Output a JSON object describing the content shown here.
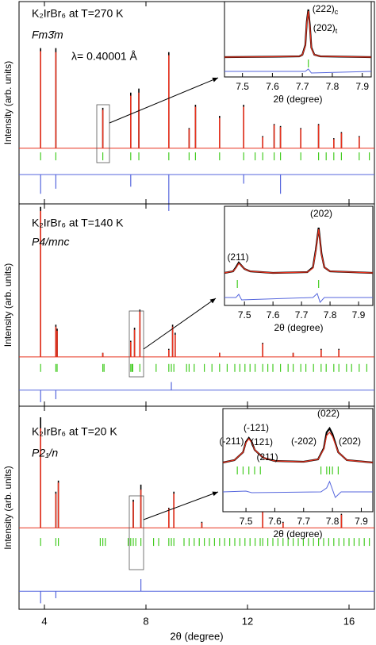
{
  "chart_data": [
    {
      "type": "diffraction",
      "texts": [
        "K₂IrBr₆ at T=270 K",
        "Fm3̄m",
        "λ= 0.40001 Å"
      ],
      "ylabel": "Intensity (arb. units)",
      "xlim": [
        3,
        17
      ],
      "xticks": [
        4,
        8,
        12,
        16
      ],
      "ylim": [
        -55,
        145
      ],
      "x": [
        3.85,
        4.45,
        6.3,
        7.4,
        7.72,
        8.9,
        9.7,
        9.95,
        10.9,
        11.85,
        12.6,
        13.05,
        13.3,
        14.1,
        14.8,
        15.4,
        15.7,
        16.4
      ],
      "series": [
        {
          "name": "observed",
          "color": "#000000",
          "values": [
            99,
            99,
            40,
            55,
            59,
            95,
            20,
            43,
            32,
            43,
            12,
            24,
            22,
            20,
            24,
            10,
            16,
            12
          ]
        },
        {
          "name": "calculated",
          "color": "#e8321e",
          "values": [
            96,
            95,
            38,
            52,
            55,
            92,
            19,
            41,
            30,
            41,
            11,
            23,
            21,
            19,
            23,
            9,
            15,
            11
          ]
        }
      ],
      "bragg": {
        "color": "#44cc22",
        "level": -8,
        "x": [
          3.85,
          4.45,
          6.3,
          7.4,
          7.72,
          8.9,
          9.7,
          9.95,
          10.9,
          11.85,
          12.3,
          12.6,
          13.05,
          13.3,
          14.1,
          14.8,
          15.1,
          15.4,
          15.7,
          16.4,
          16.8
        ]
      },
      "difference": {
        "color": "#5566dd",
        "baseline": -26,
        "x": [
          3.85,
          4.45,
          7.4,
          8.9,
          11.85,
          13.3
        ],
        "values": [
          -45,
          -40,
          -38,
          -62,
          -35,
          -45
        ]
      }
    },
    {
      "type": "diffraction",
      "texts": [
        "K₂IrBr₆ at T=140 K",
        "P4/mnc"
      ],
      "ylabel": "Intensity (arb. units)",
      "xlim": [
        3,
        17
      ],
      "xticks": [
        4,
        8,
        12,
        16
      ],
      "ylim": [
        -49,
        152
      ],
      "x": [
        3.85,
        4.45,
        4.5,
        6.3,
        7.4,
        7.55,
        7.76,
        8.9,
        9.05,
        9.15,
        10.9,
        12.6,
        13.8,
        14.9,
        15.6
      ],
      "series": [
        {
          "name": "observed",
          "color": "#000000",
          "values": [
            149,
            32,
            28,
            4,
            16,
            29,
            47,
            8,
            32,
            24,
            4,
            14,
            4,
            8,
            8
          ]
        },
        {
          "name": "calculated",
          "color": "#e8321e",
          "values": [
            145,
            30,
            26,
            4,
            15,
            27,
            45,
            7,
            30,
            22,
            4,
            13,
            4,
            7,
            7
          ]
        }
      ],
      "bragg": {
        "color": "#44cc22",
        "level": -11,
        "x": [
          3.85,
          4.45,
          4.5,
          6.3,
          6.35,
          7.4,
          7.45,
          7.48,
          7.76,
          8.4,
          8.9,
          9.0,
          9.1,
          9.6,
          9.7,
          9.9,
          10.3,
          10.6,
          10.9,
          11.2,
          11.5,
          11.7,
          11.9,
          12.1,
          12.3,
          12.6,
          12.8,
          13.0,
          13.3,
          13.6,
          13.8,
          14.1,
          14.3,
          14.6,
          14.9,
          15.1,
          15.4,
          15.6,
          15.9,
          16.1,
          16.4,
          16.7
        ]
      },
      "difference": {
        "color": "#5566dd",
        "baseline": -33,
        "x": [
          3.85,
          4.45,
          9.0
        ],
        "values": [
          -45,
          -42,
          -25
        ]
      }
    },
    {
      "type": "diffraction",
      "texts": [
        "K₂IrBr₆ at T=20 K",
        "P2₁/n"
      ],
      "ylabel": "Intensity (arb. units)",
      "xlabel": "2θ (degree)",
      "xlim": [
        3,
        17
      ],
      "xticks": [
        4,
        8,
        12,
        16
      ],
      "ylim": [
        -81,
        121
      ],
      "x": [
        3.85,
        4.45,
        4.55,
        7.5,
        7.8,
        8.9,
        9.1,
        10.2,
        12.6,
        13.4,
        15.7
      ],
      "series": [
        {
          "name": "observed",
          "color": "#000000",
          "values": [
            110,
            36,
            47,
            28,
            43,
            20,
            36,
            6,
            20,
            6,
            14
          ]
        },
        {
          "name": "calculated",
          "color": "#e8321e",
          "values": [
            99,
            34,
            45,
            26,
            38,
            19,
            34,
            5,
            18,
            5,
            13
          ]
        }
      ],
      "bragg": {
        "color": "#44cc22",
        "level": -14,
        "x": [
          3.85,
          4.45,
          4.55,
          6.2,
          6.3,
          6.4,
          7.3,
          7.4,
          7.5,
          7.6,
          7.8,
          8.3,
          8.5,
          8.9,
          9.0,
          9.1,
          9.5,
          9.7,
          9.9,
          10.1,
          10.3,
          10.5,
          10.7,
          10.9,
          11.1,
          11.3,
          11.5,
          11.7,
          11.9,
          12.1,
          12.3,
          12.5,
          12.6,
          12.8,
          13.0,
          13.2,
          13.4,
          13.6,
          13.8,
          14.0,
          14.2,
          14.4,
          14.6,
          14.8,
          15.0,
          15.2,
          15.4,
          15.6,
          15.8,
          16.0,
          16.2,
          16.4,
          16.6,
          16.8
        ]
      },
      "difference": {
        "color": "#5566dd",
        "baseline": -63,
        "x": [
          3.85,
          4.45,
          7.8
        ],
        "values": [
          -75,
          -70,
          -51
        ]
      }
    },
    {
      "type": "profile",
      "xlabel": "2θ (degree)",
      "xlim": [
        7.44,
        7.93
      ],
      "xticks": [
        7.5,
        7.6,
        7.7,
        7.8,
        7.9
      ],
      "ylim": [
        -25,
        70
      ],
      "peak_labels": [
        {
          "text": "(222)",
          "sub": "c"
        },
        {
          "text": "(202)",
          "sub": "t"
        }
      ],
      "x": [
        7.44,
        7.6,
        7.69,
        7.7,
        7.71,
        7.715,
        7.72,
        7.725,
        7.73,
        7.74,
        7.76,
        7.93
      ],
      "series": [
        {
          "name": "observed",
          "color": "#000000",
          "values": [
            0,
            0.5,
            1,
            3,
            15,
            45,
            60,
            40,
            12,
            3,
            1,
            0
          ]
        },
        {
          "name": "calculated",
          "color": "#e8321e",
          "values": [
            0,
            0.5,
            1,
            3,
            14,
            44,
            58,
            39,
            11,
            3,
            1,
            0
          ]
        }
      ],
      "bragg": {
        "color": "#44cc22",
        "level": -8,
        "x": [
          7.72
        ]
      },
      "difference": {
        "color": "#5566dd",
        "x": [
          7.44,
          7.71,
          7.72,
          7.73,
          7.93
        ],
        "values": [
          -18,
          -18,
          -15,
          -20,
          -18
        ]
      }
    },
    {
      "type": "profile",
      "xlabel": "2θ (degree)",
      "xlim": [
        7.43,
        7.95
      ],
      "xticks": [
        7.5,
        7.6,
        7.7,
        7.8,
        7.9
      ],
      "ylim": [
        -40,
        85
      ],
      "peak_labels": [
        "(211)",
        "(202)"
      ],
      "x": [
        7.43,
        7.46,
        7.47,
        7.48,
        7.49,
        7.5,
        7.52,
        7.6,
        7.72,
        7.74,
        7.75,
        7.76,
        7.77,
        7.78,
        7.8,
        7.95
      ],
      "series": [
        {
          "name": "observed",
          "color": "#000000",
          "values": [
            1,
            3,
            8,
            14,
            10,
            6,
            3,
            1,
            2,
            8,
            30,
            58,
            25,
            8,
            3,
            1
          ]
        },
        {
          "name": "calculated",
          "color": "#e8321e",
          "values": [
            1,
            3,
            7,
            13,
            10,
            6,
            3,
            1,
            2,
            7,
            29,
            56,
            24,
            8,
            3,
            1
          ]
        }
      ],
      "bragg": {
        "color": "#44cc22",
        "level": -13,
        "x": [
          7.475,
          7.76
        ]
      },
      "difference": {
        "color": "#5566dd",
        "x": [
          7.43,
          7.47,
          7.48,
          7.49,
          7.74,
          7.755,
          7.765,
          7.78,
          7.95
        ],
        "values": [
          -30,
          -30,
          -26,
          -33,
          -30,
          -25,
          -36,
          -30,
          -30
        ]
      }
    },
    {
      "type": "profile",
      "xlabel": "2θ (degree)",
      "xlim": [
        7.42,
        7.94
      ],
      "xticks": [
        7.5,
        7.6,
        7.7,
        7.8,
        7.9
      ],
      "ylim": [
        -60,
        70
      ],
      "peak_labels": [
        "(-211)",
        "(-121)",
        "(121)",
        "(211)",
        "(022)",
        "(-202)",
        "(202)"
      ],
      "x": [
        7.42,
        7.46,
        7.49,
        7.5,
        7.51,
        7.52,
        7.53,
        7.56,
        7.6,
        7.7,
        7.75,
        7.77,
        7.78,
        7.79,
        7.8,
        7.82,
        7.85,
        7.94
      ],
      "series": [
        {
          "name": "observed",
          "color": "#000000",
          "values": [
            2,
            5,
            15,
            28,
            33,
            28,
            18,
            8,
            4,
            3,
            6,
            20,
            40,
            45,
            38,
            15,
            5,
            2
          ]
        },
        {
          "name": "calculated",
          "color": "#e8321e",
          "values": [
            2,
            5,
            15,
            27,
            32,
            27,
            18,
            8,
            4,
            3,
            6,
            19,
            36,
            40,
            35,
            15,
            5,
            2
          ]
        }
      ],
      "bragg": {
        "color": "#44cc22",
        "level": -8,
        "x": [
          7.47,
          7.49,
          7.51,
          7.53,
          7.55,
          7.76,
          7.78,
          7.79,
          7.8,
          7.82
        ]
      },
      "difference": {
        "color": "#5566dd",
        "x": [
          7.42,
          7.5,
          7.52,
          7.76,
          7.78,
          7.79,
          7.81,
          7.83,
          7.94
        ],
        "values": [
          -35,
          -34,
          -36,
          -35,
          -30,
          -22,
          -42,
          -35,
          -35
        ]
      }
    }
  ]
}
